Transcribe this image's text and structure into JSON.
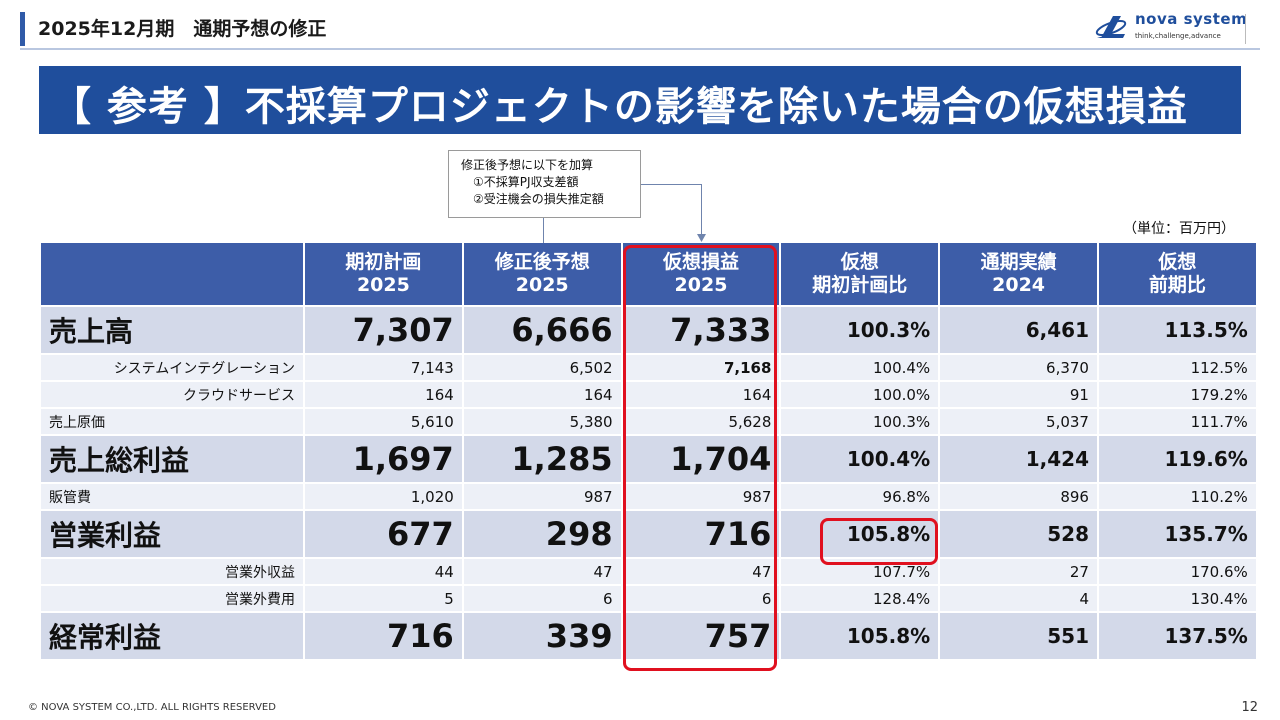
{
  "header": {
    "title": "2025年12月期　通期予想の修正"
  },
  "logo": {
    "name": "nova system",
    "tagline": "think,challenge,advance",
    "brand_color": "#1f4e9c"
  },
  "banner": {
    "text": "【 参考 】不採算プロジェクトの影響を除いた場合の仮想損益",
    "background": "#1f4e9c"
  },
  "note": {
    "lines": [
      "修正後予想に以下を加算",
      "　①不採算PJ収支差額",
      "　②受注機会の損失推定額"
    ]
  },
  "unit": "（単位：百万円）",
  "table": {
    "columns": [
      {
        "line1": "期初計画",
        "line2": "2025"
      },
      {
        "line1": "修正後予想",
        "line2": "2025"
      },
      {
        "line1": "仮想損益",
        "line2": "2025"
      },
      {
        "line1": "仮想",
        "line2": "期初計画比"
      },
      {
        "line1": "通期実績",
        "line2": "2024"
      },
      {
        "line1": "仮想",
        "line2": "前期比"
      }
    ],
    "rows": [
      {
        "label": "売上高",
        "values": [
          "7,307",
          "6,666",
          "7,333",
          "100.3%",
          "6,461",
          "113.5%"
        ]
      },
      {
        "label": "システムインテグレーション",
        "values": [
          "7,143",
          "6,502",
          "7,168",
          "100.4%",
          "6,370",
          "112.5%"
        ]
      },
      {
        "label": "クラウドサービス",
        "values": [
          "164",
          "164",
          "164",
          "100.0%",
          "91",
          "179.2%"
        ]
      },
      {
        "label": "売上原価",
        "values": [
          "5,610",
          "5,380",
          "5,628",
          "100.3%",
          "5,037",
          "111.7%"
        ]
      },
      {
        "label": "売上総利益",
        "values": [
          "1,697",
          "1,285",
          "1,704",
          "100.4%",
          "1,424",
          "119.6%"
        ]
      },
      {
        "label": "販管費",
        "values": [
          "1,020",
          "987",
          "987",
          "96.8%",
          "896",
          "110.2%"
        ]
      },
      {
        "label": "営業利益",
        "values": [
          "677",
          "298",
          "716",
          "105.8%",
          "528",
          "135.7%"
        ]
      },
      {
        "label": "営業外収益",
        "values": [
          "44",
          "47",
          "47",
          "107.7%",
          "27",
          "170.6%"
        ]
      },
      {
        "label": "営業外費用",
        "values": [
          "5",
          "6",
          "6",
          "128.4%",
          "4",
          "130.4%"
        ]
      },
      {
        "label": "経常利益",
        "values": [
          "716",
          "339",
          "757",
          "105.8%",
          "551",
          "137.5%"
        ]
      }
    ]
  },
  "highlight_color": "#e0101f",
  "footer": {
    "copyright": "© NOVA SYSTEM CO.,LTD. ALL RIGHTS RESERVED",
    "page": "12"
  }
}
